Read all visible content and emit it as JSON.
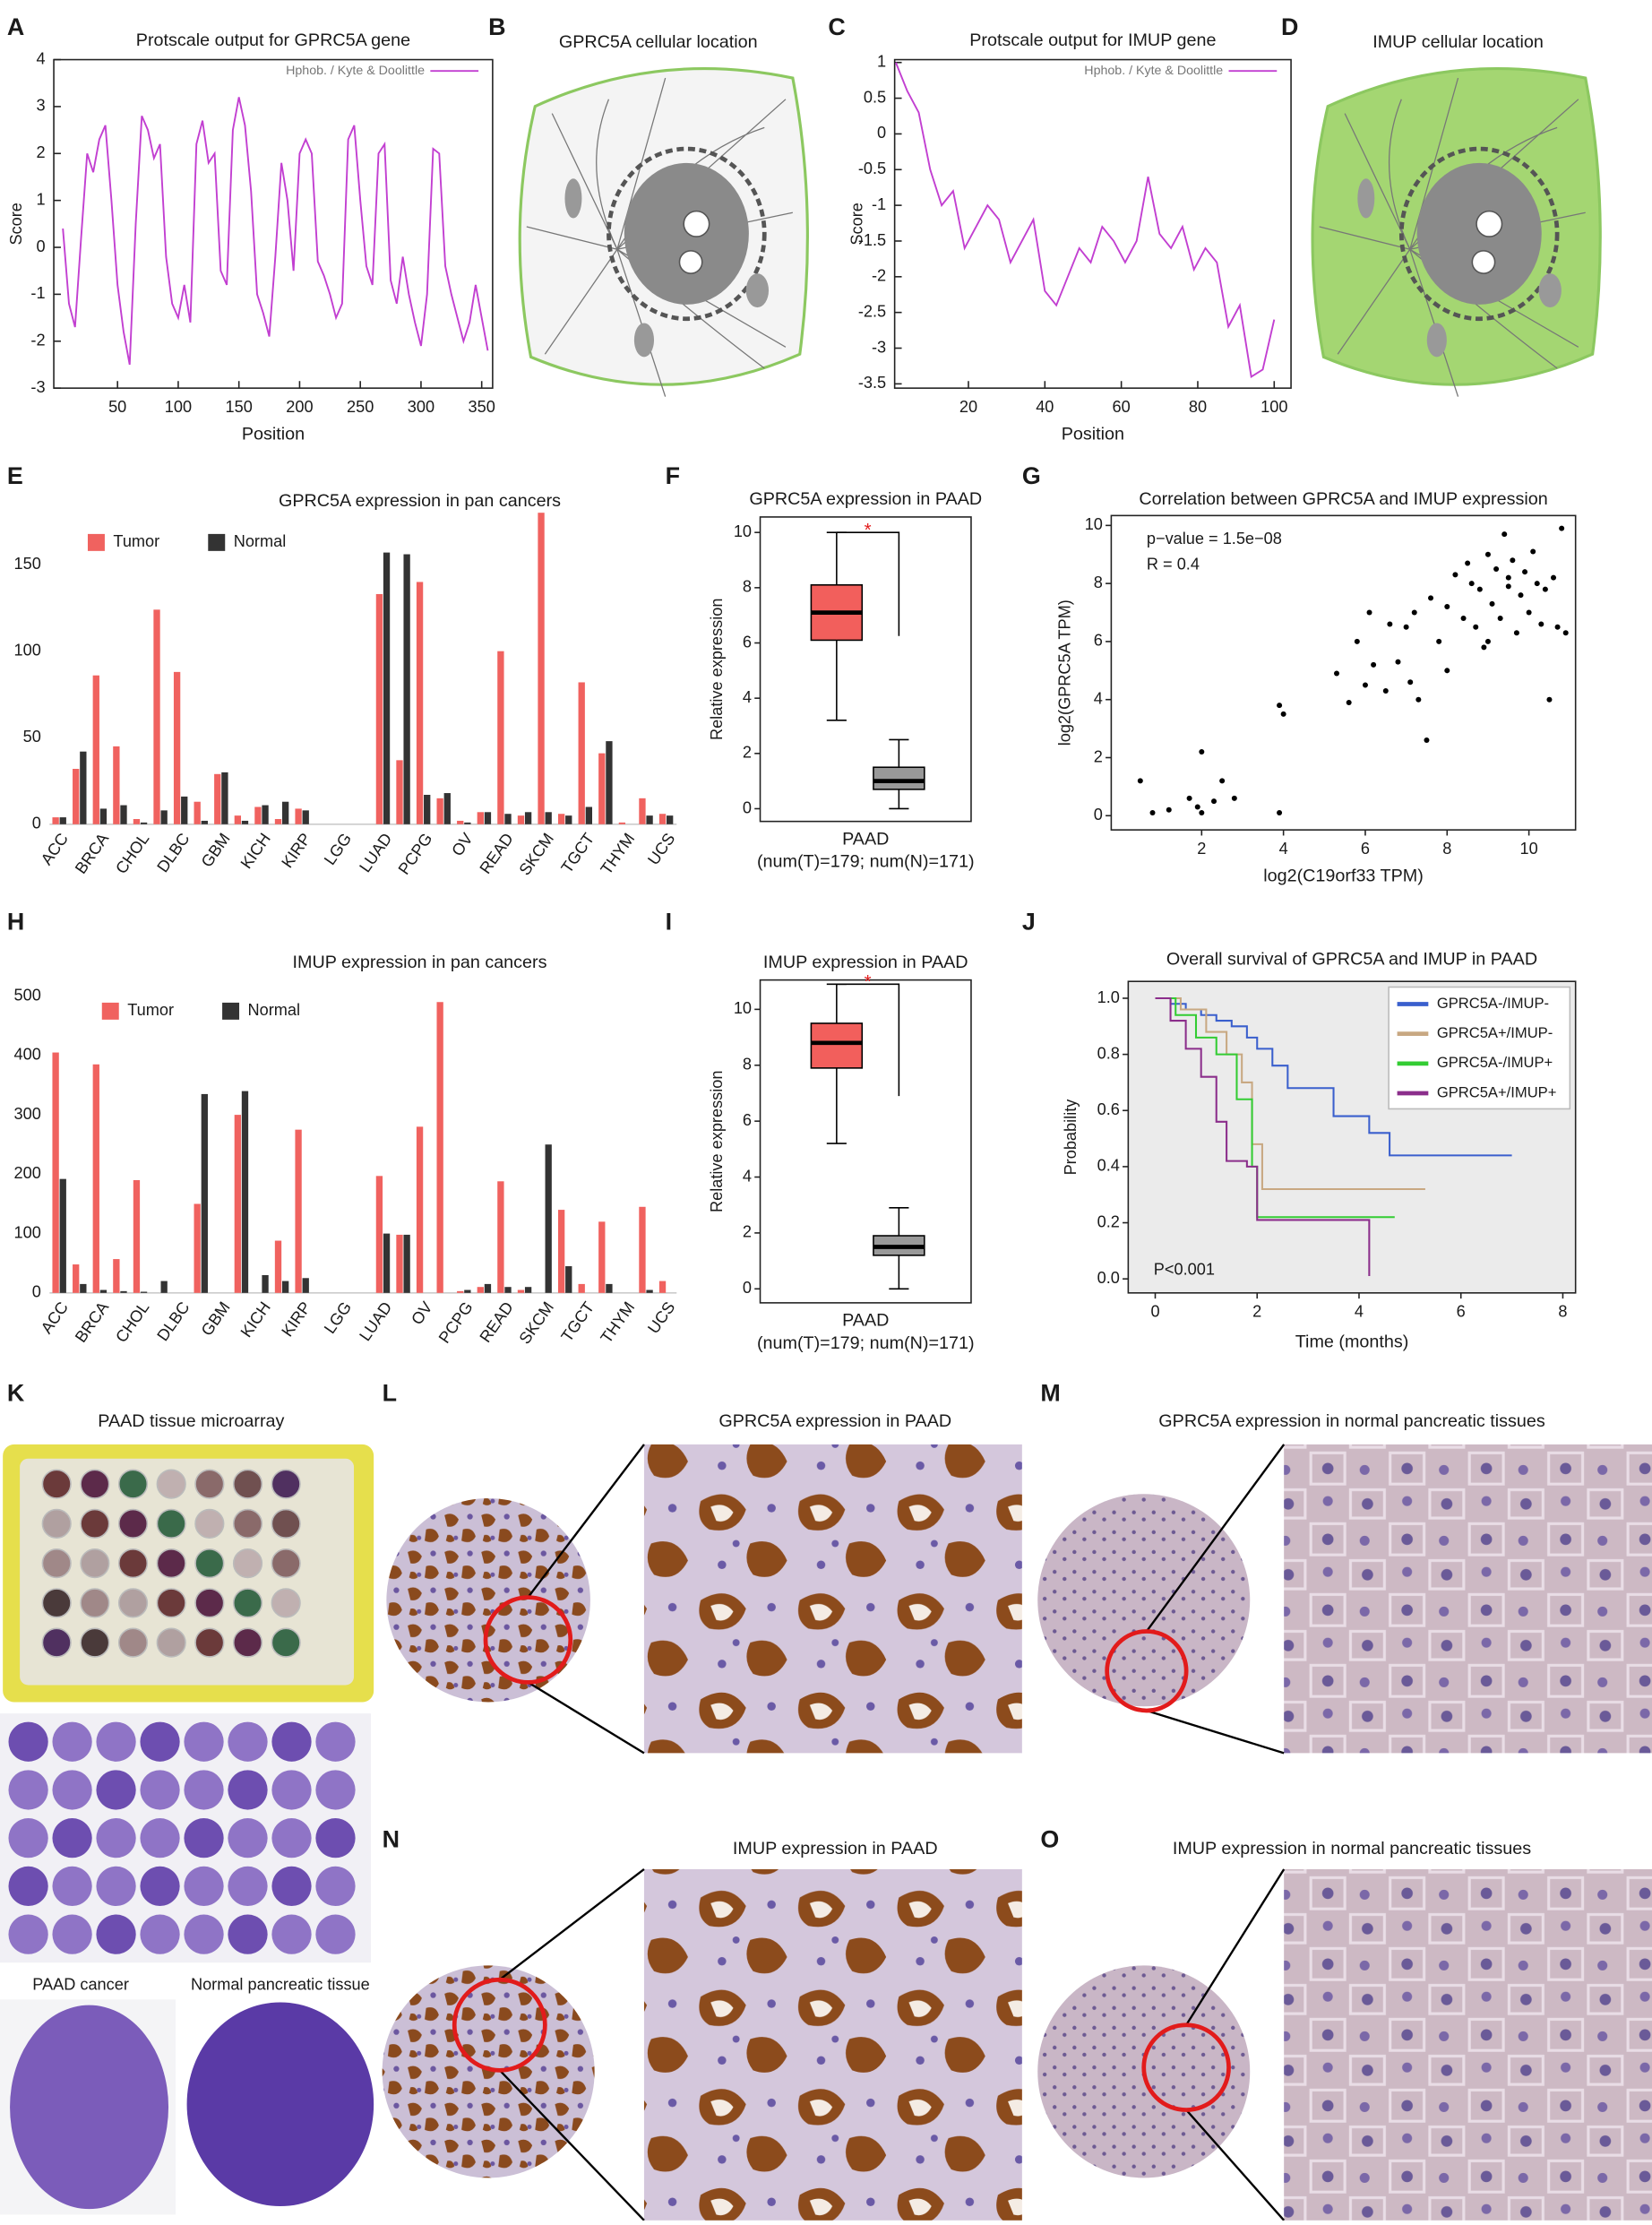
{
  "chart_data": [
    {
      "panel": "A",
      "type": "line",
      "title": "Protscale output for GPRC5A gene",
      "xlabel": "Position",
      "ylabel": "Score",
      "x": [
        5,
        10,
        15,
        20,
        25,
        30,
        35,
        40,
        45,
        50,
        55,
        60,
        65,
        70,
        75,
        80,
        85,
        90,
        95,
        100,
        105,
        110,
        115,
        120,
        125,
        130,
        135,
        140,
        145,
        150,
        155,
        160,
        165,
        170,
        175,
        180,
        185,
        190,
        195,
        200,
        205,
        210,
        215,
        220,
        225,
        230,
        235,
        240,
        245,
        250,
        255,
        260,
        265,
        270,
        275,
        280,
        285,
        290,
        295,
        300,
        305,
        310,
        315,
        320,
        325,
        330,
        335,
        340,
        345,
        350,
        355
      ],
      "series": [
        {
          "name": "Hphob. / Kyte & Doolittle",
          "color": "#c23fd1",
          "values": [
            0.4,
            -1.2,
            -1.7,
            0.2,
            2.0,
            1.6,
            2.3,
            2.6,
            1.0,
            -0.8,
            -1.8,
            -2.5,
            0.5,
            2.8,
            2.5,
            1.9,
            2.2,
            -0.2,
            -1.2,
            -1.5,
            -0.8,
            -1.6,
            2.2,
            2.7,
            1.8,
            2.0,
            -0.5,
            -0.8,
            2.5,
            3.2,
            2.6,
            1.2,
            -1.0,
            -1.4,
            -1.9,
            -0.2,
            1.8,
            1.0,
            -0.5,
            2.0,
            2.3,
            2.0,
            -0.3,
            -0.6,
            -1.0,
            -1.5,
            -1.2,
            2.3,
            2.6,
            1.0,
            -0.4,
            -0.8,
            2.0,
            2.2,
            -0.7,
            -1.2,
            -0.2,
            -1.0,
            -1.6,
            -2.1,
            -1.0,
            2.1,
            2.0,
            -0.4,
            -1.0,
            -1.5,
            -2.0,
            -1.6,
            -0.8,
            -1.5,
            -2.2
          ]
        }
      ],
      "xlim": [
        -2.5,
        359
      ],
      "xticks": [
        50,
        100,
        150,
        200,
        250,
        300,
        350
      ],
      "ylim": [
        -3,
        4
      ],
      "yticks": [
        -3,
        -2,
        -1,
        0,
        1,
        2,
        3,
        4
      ],
      "legend": "upper right"
    },
    {
      "panel": "C",
      "type": "line",
      "title": "Protscale output for IMUP gene",
      "xlabel": "Position",
      "ylabel": "Score",
      "x": [
        1,
        4,
        7,
        10,
        13,
        16,
        19,
        22,
        25,
        28,
        31,
        34,
        37,
        40,
        43,
        46,
        49,
        52,
        55,
        58,
        61,
        64,
        67,
        70,
        73,
        76,
        79,
        82,
        85,
        88,
        91,
        94,
        97,
        100
      ],
      "series": [
        {
          "name": "Hphob. / Kyte & Doolittle",
          "color": "#c23fd1",
          "values": [
            1.0,
            0.6,
            0.3,
            -0.5,
            -1.0,
            -0.8,
            -1.6,
            -1.3,
            -1.0,
            -1.2,
            -1.8,
            -1.5,
            -1.2,
            -2.2,
            -2.4,
            -2.0,
            -1.6,
            -1.8,
            -1.3,
            -1.5,
            -1.8,
            -1.5,
            -0.6,
            -1.4,
            -1.6,
            -1.3,
            -1.9,
            -1.6,
            -1.8,
            -2.7,
            -2.4,
            -3.4,
            -3.3,
            -2.6
          ]
        }
      ],
      "xlim": [
        0.7,
        104.4
      ],
      "xticks": [
        20,
        40,
        60,
        80,
        100
      ],
      "ylim": [
        -3.56,
        1.04
      ],
      "yticks": [
        -3.5,
        -3,
        -2.5,
        -2,
        -1.5,
        -1,
        -0.5,
        0,
        0.5,
        1
      ],
      "legend": "upper right"
    },
    {
      "panel": "E",
      "type": "bar",
      "title": "GPRC5A expression in pan cancers",
      "categories": [
        "ACC",
        null,
        "BRCA",
        null,
        "CHOL",
        null,
        "DLBC",
        null,
        "GBM",
        null,
        "KICH",
        null,
        "KIRP",
        null,
        "LGG",
        null,
        "LUAD",
        null,
        "PCPG",
        null,
        "OV",
        null,
        "READ",
        null,
        "SKCM",
        null,
        "TGCT",
        null,
        "THYM",
        null,
        "UCS"
      ],
      "series": [
        {
          "name": "Tumor",
          "color": "#f0625f",
          "values": [
            4,
            32,
            86,
            45,
            3,
            124,
            88,
            13,
            29,
            5,
            10,
            3,
            9,
            0,
            0,
            0,
            133,
            37,
            140,
            15,
            2,
            7,
            100,
            5,
            180,
            6,
            82,
            41,
            1,
            15,
            6
          ]
        },
        {
          "name": "Normal",
          "color": "#333333",
          "values": [
            4,
            42,
            9,
            11,
            1,
            8,
            16,
            2,
            30,
            2,
            11,
            13,
            8,
            0,
            0,
            0,
            157,
            156,
            17,
            18,
            1,
            7,
            6,
            7,
            7,
            5,
            10,
            48,
            0,
            5,
            5
          ]
        }
      ],
      "ylim": [
        0,
        180
      ],
      "yticks": [
        0,
        50,
        100,
        150
      ],
      "legend": "upper left"
    },
    {
      "panel": "F",
      "type": "box",
      "title": "GPRC5A expression in PAAD",
      "ylabel": "Relative expression",
      "categories": [
        "PAAD"
      ],
      "xlabel": "(num(T)=179; num(N)=171)",
      "annotation": "*",
      "boxes": [
        {
          "color": "#f25f5c",
          "whislo": 3.2,
          "q1": 6.1,
          "median": 7.1,
          "q3": 8.1,
          "whishi": 10
        },
        {
          "color": "#999999",
          "whislo": 0,
          "q1": 0.7,
          "median": 1.0,
          "q3": 1.5,
          "whishi": 2.5
        }
      ],
      "ylim": [
        -0.46,
        10.56
      ],
      "yticks": [
        0,
        2,
        4,
        6,
        8,
        10
      ]
    },
    {
      "panel": "G",
      "type": "scatter",
      "title": "Correlation between GPRC5A and IMUP expression",
      "xlabel": "log2(C19orf33 TPM)",
      "ylabel": "log2(GPRC5A TPM)",
      "annotations": [
        "p−value = 1.5e−08",
        "R = 0.4"
      ],
      "color": "#000000",
      "x": [
        0.5,
        0.8,
        1.2,
        1.7,
        1.9,
        2.0,
        2.0,
        2.3,
        2.5,
        2.8,
        3.9,
        4.0,
        3.9,
        5.3,
        5.6,
        5.8,
        6.0,
        6.1,
        6.2,
        6.5,
        6.6,
        7.0,
        7.1,
        7.3,
        7.5,
        7.6,
        7.8,
        8.0,
        8.0,
        8.2,
        8.4,
        8.6,
        8.7,
        8.8,
        9.0,
        9.1,
        9.2,
        9.3,
        9.4,
        9.5,
        9.6,
        9.7,
        9.8,
        9.9,
        10.0,
        10.1,
        10.2,
        10.3,
        10.4,
        10.5,
        10.6,
        10.7,
        10.8,
        10.9,
        8.5,
        9.0,
        7.2,
        8.9,
        6.8,
        9.5
      ],
      "values": [
        1.2,
        0.1,
        0.2,
        0.6,
        0.3,
        2.2,
        0.1,
        0.5,
        1.2,
        0.6,
        3.8,
        3.5,
        0.1,
        4.9,
        3.9,
        6.0,
        4.5,
        7.0,
        5.2,
        4.3,
        6.6,
        6.5,
        4.6,
        4.0,
        2.6,
        7.5,
        6.0,
        5.0,
        7.2,
        8.3,
        6.8,
        8.0,
        6.5,
        7.8,
        9.0,
        7.3,
        8.5,
        6.8,
        9.7,
        7.9,
        8.8,
        6.3,
        7.6,
        8.4,
        7.0,
        9.1,
        8.0,
        6.6,
        7.8,
        4.0,
        8.2,
        6.5,
        9.9,
        6.3,
        8.7,
        6.0,
        7.0,
        5.8,
        5.3,
        8.2
      ],
      "xlim": [
        -0.21,
        11.14
      ],
      "xticks": [
        2,
        4,
        6,
        8,
        10
      ],
      "ylim": [
        -0.49,
        10.34
      ],
      "yticks": [
        0,
        2,
        4,
        6,
        8,
        10
      ]
    },
    {
      "panel": "H",
      "type": "bar",
      "title": "IMUP expression in pan cancers",
      "categories": [
        "ACC",
        null,
        "BRCA",
        null,
        "CHOL",
        null,
        "DLBC",
        null,
        "GBM",
        null,
        "KICH",
        null,
        "KIRP",
        null,
        "LGG",
        null,
        "LUAD",
        null,
        "OV",
        null,
        "PCPG",
        null,
        "READ",
        null,
        "SKCM",
        null,
        "TGCT",
        null,
        "THYM",
        null,
        "UCS"
      ],
      "series": [
        {
          "name": "Tumor",
          "color": "#f0625f",
          "values": [
            405,
            48,
            385,
            57,
            190,
            0,
            0,
            150,
            0,
            300,
            0,
            88,
            275,
            0,
            0,
            0,
            197,
            98,
            280,
            490,
            3,
            10,
            188,
            5,
            0,
            140,
            15,
            120,
            0,
            145,
            20
          ]
        },
        {
          "name": "Normal",
          "color": "#333333",
          "values": [
            192,
            15,
            5,
            3,
            2,
            20,
            0,
            335,
            0,
            340,
            30,
            20,
            25,
            0,
            0,
            0,
            100,
            98,
            0,
            0,
            5,
            15,
            10,
            10,
            250,
            45,
            0,
            15,
            0,
            5,
            0
          ]
        }
      ],
      "ylim": [
        0,
        520
      ],
      "yticks": [
        0,
        100,
        200,
        300,
        400,
        500
      ],
      "legend": "upper left"
    },
    {
      "panel": "I",
      "type": "box",
      "title": "IMUP expression in PAAD",
      "ylabel": "Relative expression",
      "categories": [
        "PAAD"
      ],
      "xlabel": "(num(T)=179; num(N)=171)",
      "annotation": "*",
      "boxes": [
        {
          "color": "#f25f5c",
          "whislo": 5.2,
          "q1": 7.9,
          "median": 8.8,
          "q3": 9.5,
          "whishi": 10.9
        },
        {
          "color": "#999999",
          "whislo": 0,
          "q1": 1.2,
          "median": 1.5,
          "q3": 1.9,
          "whishi": 2.9
        }
      ],
      "ylim": [
        -0.5,
        11.05
      ],
      "yticks": [
        0,
        2,
        4,
        6,
        8,
        10
      ]
    },
    {
      "panel": "J",
      "type": "step",
      "title": "Overall survival of GPRC5A and IMUP in PAAD",
      "xlabel": "Time (months)",
      "ylabel": "Probability",
      "annotation": "P<0.001",
      "series": [
        {
          "name": "GPRC5A-/IMUP-",
          "color": "#3a5fcd",
          "x": [
            0,
            0.3,
            0.6,
            0.9,
            1.2,
            1.5,
            1.8,
            2.0,
            2.3,
            2.6,
            3.2,
            3.5,
            4.2,
            4.6,
            7.0
          ],
          "values": [
            1.0,
            0.98,
            0.96,
            0.94,
            0.92,
            0.9,
            0.86,
            0.82,
            0.76,
            0.68,
            0.68,
            0.58,
            0.52,
            0.44,
            0.44
          ]
        },
        {
          "name": "GPRC5A+/IMUP-",
          "color": "#c8a882",
          "x": [
            0,
            0.5,
            1.0,
            1.4,
            1.7,
            1.9,
            2.1,
            5.3
          ],
          "values": [
            1.0,
            0.96,
            0.88,
            0.8,
            0.7,
            0.48,
            0.32,
            0.32
          ]
        },
        {
          "name": "GPRC5A-/IMUP+",
          "color": "#33cc33",
          "x": [
            0,
            0.4,
            0.8,
            1.2,
            1.6,
            1.9,
            2.0,
            4.7
          ],
          "values": [
            1.0,
            0.94,
            0.86,
            0.8,
            0.64,
            0.4,
            0.22,
            0.22
          ]
        },
        {
          "name": "GPRC5A+/IMUP+",
          "color": "#8b2e8b",
          "x": [
            0,
            0.3,
            0.6,
            0.9,
            1.2,
            1.4,
            1.8,
            2.0,
            4.2,
            4.2
          ],
          "values": [
            1.0,
            0.92,
            0.82,
            0.72,
            0.56,
            0.42,
            0.4,
            0.21,
            0.21,
            0.01
          ]
        }
      ],
      "xlim": [
        -0.53,
        8.25
      ],
      "xticks": [
        0,
        2,
        4,
        6,
        8
      ],
      "ylim": [
        -0.05,
        1.06
      ],
      "yticks": [
        {
          "value": 0,
          "label": "0.0"
        },
        0.2,
        0.4,
        0.6,
        0.8,
        {
          "value": 1,
          "label": "1.0"
        }
      ],
      "legend": "upper right"
    }
  ],
  "figures": [
    {
      "panel": "B",
      "title": "GPRC5A cellular location"
    },
    {
      "panel": "D",
      "title": "IMUP cellular location"
    },
    {
      "panel": "K",
      "title": "PAAD tissue microarray",
      "captions": [
        "PAAD cancer",
        "Normal pancreatic tissue"
      ]
    },
    {
      "panel": "L",
      "title": "GPRC5A expression in PAAD"
    },
    {
      "panel": "M",
      "title": "GPRC5A expression in normal pancreatic tissues"
    },
    {
      "panel": "N",
      "title": "IMUP expression in PAAD"
    },
    {
      "panel": "O",
      "title": "IMUP expression in normal pancreatic tissues"
    }
  ]
}
